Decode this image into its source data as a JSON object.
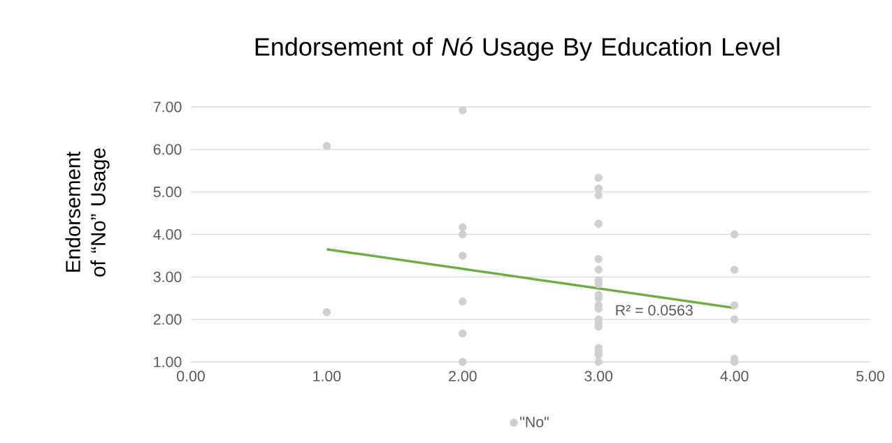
{
  "chart_data": {
    "type": "scatter",
    "title": "Endorsement of *Nó* Usage By Education Level",
    "ylabel": "Endorsement of “No” Usage",
    "series": [
      {
        "name": "\"No\"",
        "type": "scatter",
        "marker": "circle",
        "color": "#d0d0d0",
        "x": [
          1,
          1,
          2,
          2,
          2,
          2,
          2,
          2,
          2,
          3,
          3,
          3,
          3,
          3,
          3,
          3,
          3,
          3,
          3,
          3,
          3,
          3,
          3,
          3,
          3,
          3,
          3,
          3,
          4,
          4,
          4,
          4,
          4,
          4
        ],
        "values": [
          6.08,
          2.17,
          6.92,
          4.17,
          4.0,
          3.5,
          2.42,
          1.67,
          1.0,
          5.33,
          5.08,
          4.92,
          4.25,
          3.42,
          3.17,
          2.92,
          2.83,
          2.58,
          2.5,
          2.33,
          2.25,
          2.0,
          1.92,
          1.83,
          1.33,
          1.25,
          1.17,
          1.0,
          4.0,
          3.17,
          2.33,
          2.0,
          1.08,
          1.0
        ]
      },
      {
        "type": "line",
        "marker": "none",
        "color": "#70ad47",
        "x": [
          1,
          4
        ],
        "values": [
          3.65,
          2.27
        ]
      }
    ],
    "annotations": [
      "R² = 0.0563"
    ],
    "xlim": [
      0,
      5
    ],
    "ylim": [
      1,
      7
    ],
    "xticks": [
      {
        "value": 0,
        "label": "0.00"
      },
      {
        "value": 1,
        "label": "1.00"
      },
      {
        "value": 2,
        "label": "2.00"
      },
      {
        "value": 3,
        "label": "3.00"
      },
      {
        "value": 4,
        "label": "4.00"
      },
      {
        "value": 5,
        "label": "5.00"
      }
    ],
    "yticks": [
      {
        "value": 1,
        "label": "1.00"
      },
      {
        "value": 2,
        "label": "2.00"
      },
      {
        "value": 3,
        "label": "3.00"
      },
      {
        "value": 4,
        "label": "4.00"
      },
      {
        "value": 5,
        "label": "5.00"
      },
      {
        "value": 6,
        "label": "6.00"
      },
      {
        "value": 7,
        "label": "7.00"
      }
    ],
    "grid": "y",
    "legend": "bottom"
  }
}
